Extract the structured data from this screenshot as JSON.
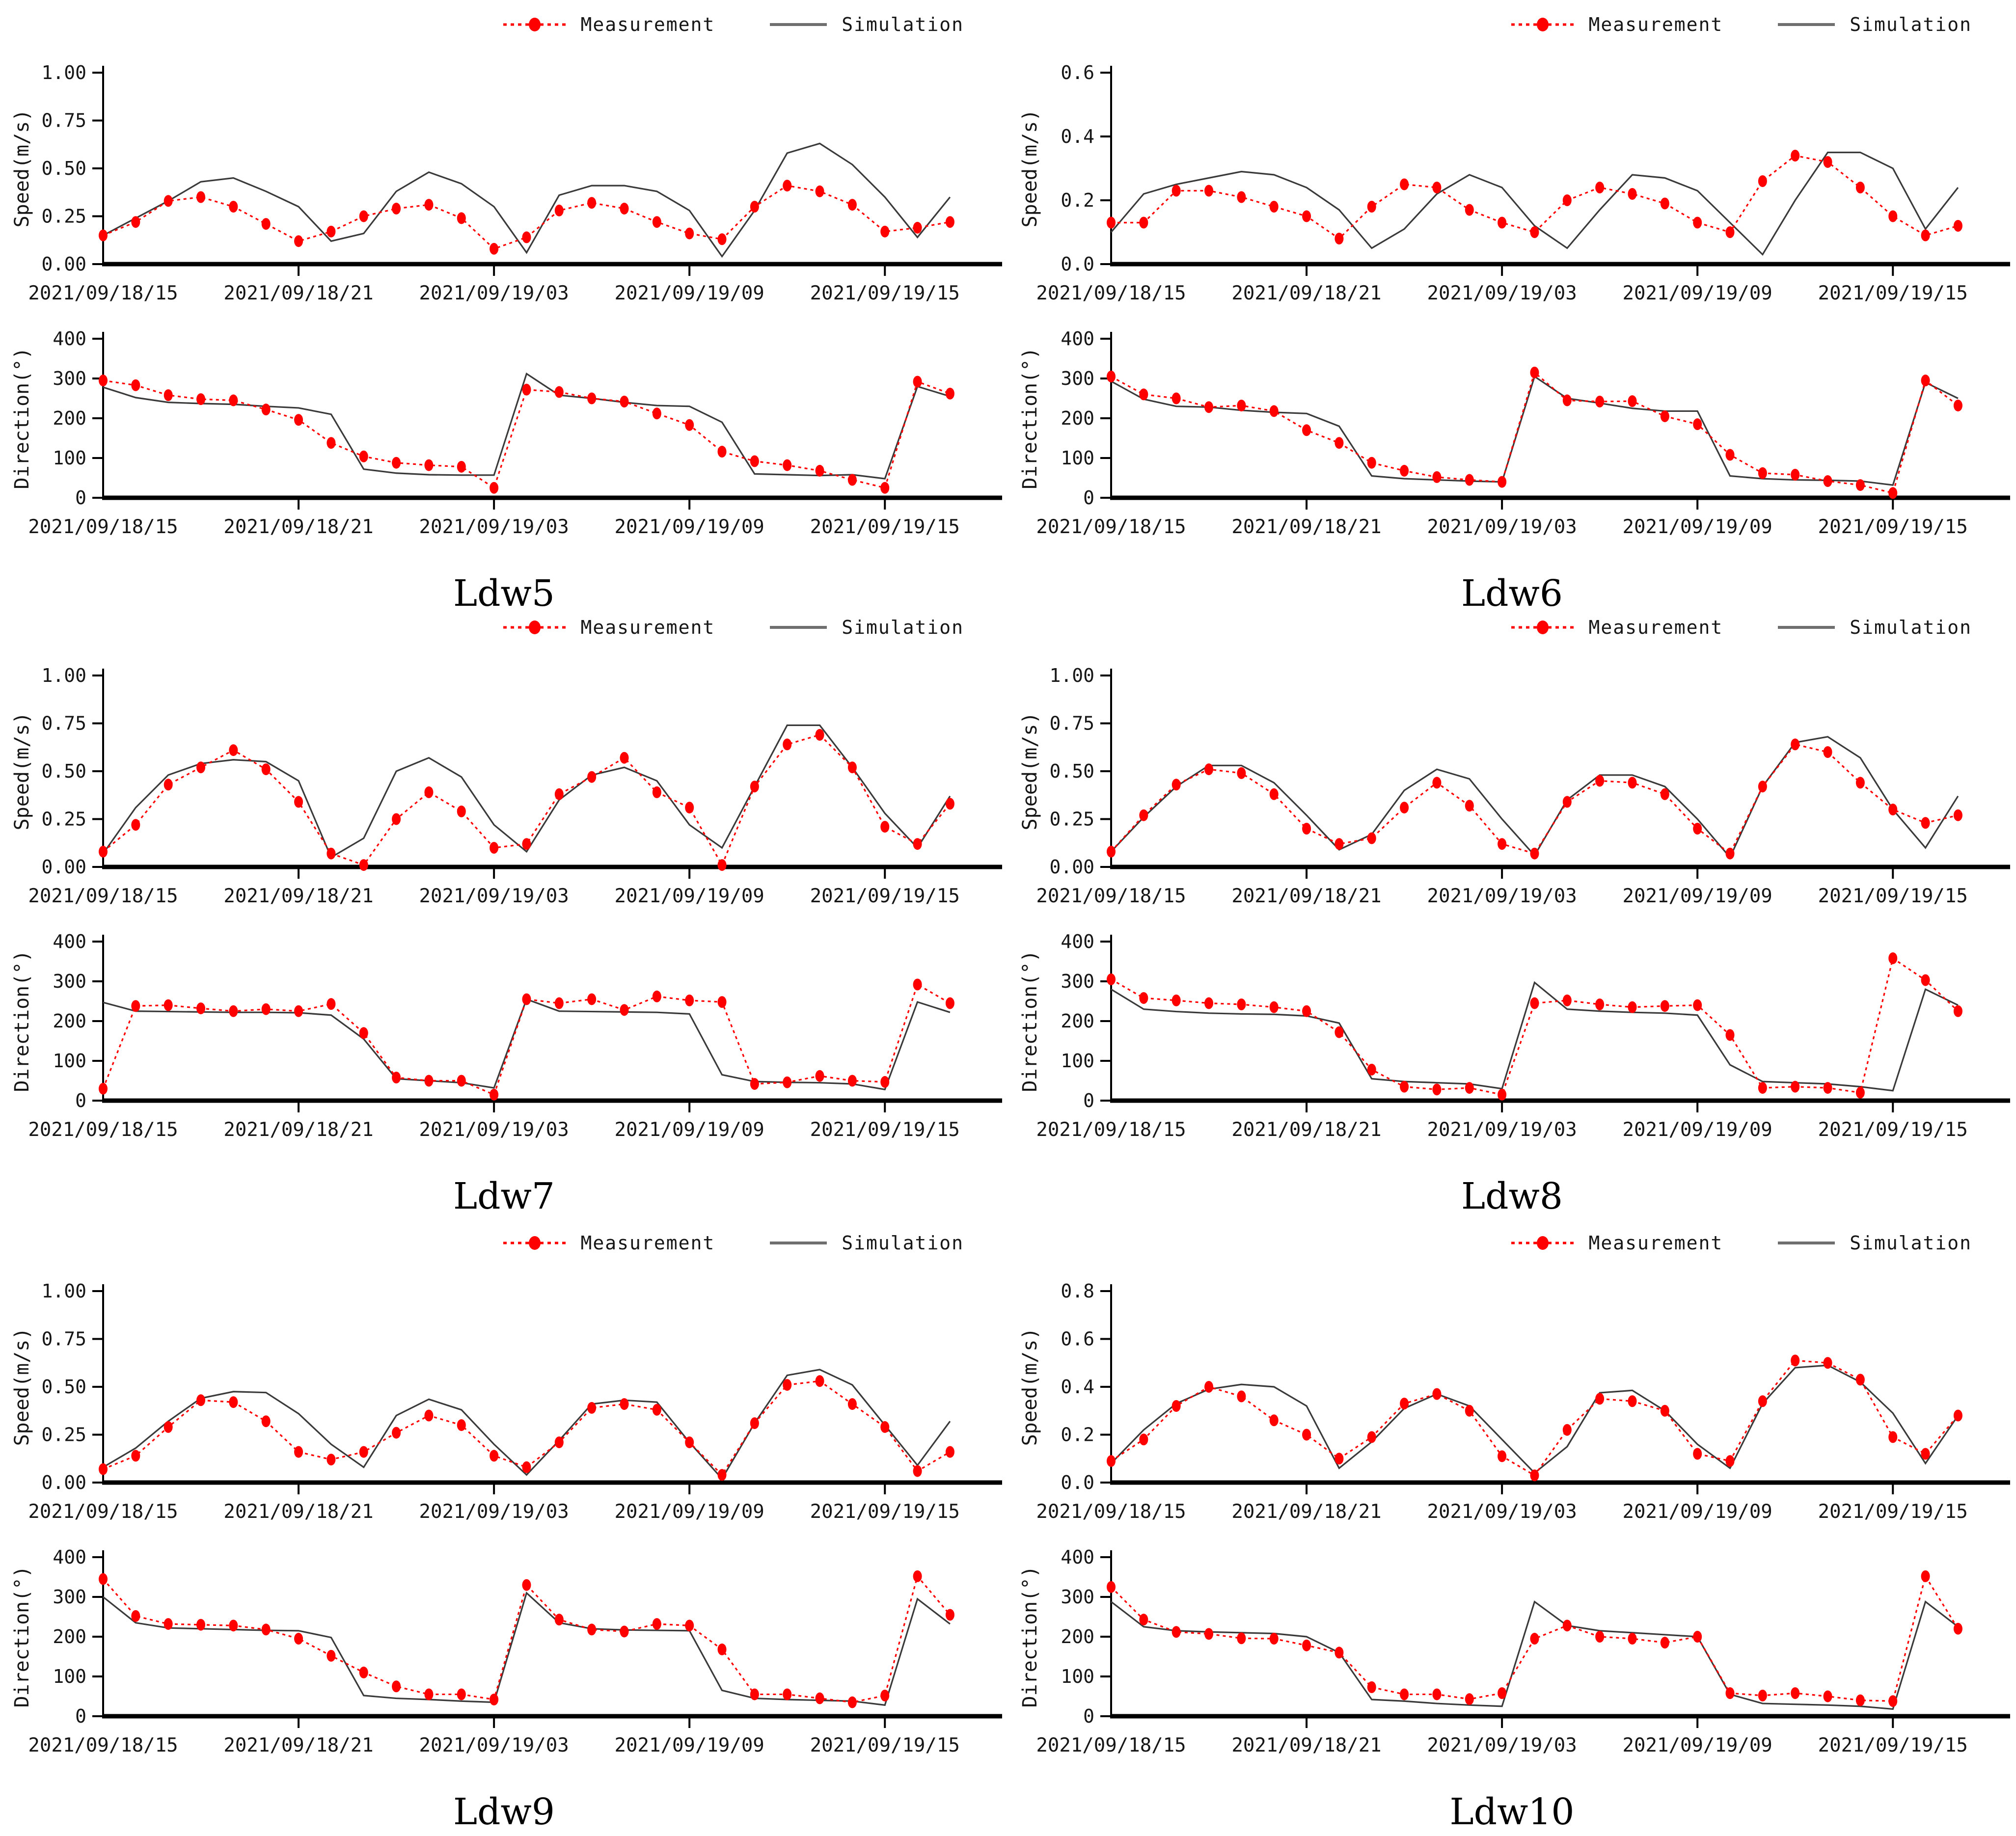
{
  "legend": {
    "measurement_label": "Measurement",
    "simulation_label": "Simulation"
  },
  "colors": {
    "measurement": "#ff0000",
    "simulation_line": "#3a3a3a",
    "simulation_swatch": "#6f6f6f",
    "axis": "#000000",
    "text": "#161616"
  },
  "x_axis": {
    "tick_labels": [
      "2021/09/18/15",
      "2021/09/18/21",
      "2021/09/19/03",
      "2021/09/19/09",
      "2021/09/19/15"
    ],
    "tick_hours": [
      0,
      6,
      12,
      18,
      24
    ],
    "points": 27
  },
  "chart_data": [
    {
      "station": "Ldw5",
      "speed": {
        "type": "line",
        "ylabel": "Speed(m/s)",
        "ymax": 1.0,
        "yticks": [
          "0.00",
          "0.25",
          "0.50",
          "0.75",
          "1.00"
        ],
        "series": [
          {
            "name": "Measurement",
            "values": [
              0.15,
              0.22,
              0.33,
              0.35,
              0.3,
              0.21,
              0.12,
              0.17,
              0.25,
              0.29,
              0.31,
              0.24,
              0.08,
              0.14,
              0.28,
              0.32,
              0.29,
              0.22,
              0.16,
              0.13,
              0.3,
              0.41,
              0.38,
              0.31,
              0.17,
              0.19,
              0.22
            ]
          },
          {
            "name": "Simulation",
            "values": [
              0.15,
              0.24,
              0.33,
              0.43,
              0.45,
              0.38,
              0.3,
              0.12,
              0.16,
              0.38,
              0.48,
              0.42,
              0.3,
              0.06,
              0.36,
              0.41,
              0.41,
              0.38,
              0.28,
              0.04,
              0.28,
              0.58,
              0.63,
              0.52,
              0.35,
              0.14,
              0.35
            ]
          }
        ]
      },
      "direction": {
        "type": "line",
        "ylabel": "Direction(°)",
        "ymax": 400,
        "yticks": [
          "0",
          "100",
          "200",
          "300",
          "400"
        ],
        "series": [
          {
            "name": "Measurement",
            "values": [
              295,
              283,
              258,
              248,
              245,
              222,
              196,
              138,
              104,
              88,
              82,
              78,
              25,
              272,
              266,
              250,
              242,
              212,
              183,
              116,
              92,
              82,
              68,
              45,
              25,
              292,
              262
            ]
          },
          {
            "name": "Simulation",
            "values": [
              278,
              252,
              240,
              237,
              235,
              230,
              226,
              210,
              72,
              62,
              58,
              57,
              57,
              312,
              258,
              250,
              240,
              232,
              230,
              190,
              60,
              58,
              56,
              58,
              48,
              280,
              255
            ]
          }
        ]
      }
    },
    {
      "station": "Ldw6",
      "speed": {
        "type": "line",
        "ylabel": "Speed(m/s)",
        "ymax": 0.6,
        "yticks": [
          "0.0",
          "0.2",
          "0.4",
          "0.6"
        ],
        "series": [
          {
            "name": "Measurement",
            "values": [
              0.13,
              0.13,
              0.23,
              0.23,
              0.21,
              0.18,
              0.15,
              0.08,
              0.18,
              0.25,
              0.24,
              0.17,
              0.13,
              0.1,
              0.2,
              0.24,
              0.22,
              0.19,
              0.13,
              0.1,
              0.26,
              0.34,
              0.32,
              0.24,
              0.15,
              0.09,
              0.12
            ]
          },
          {
            "name": "Simulation",
            "values": [
              0.1,
              0.22,
              0.25,
              0.27,
              0.29,
              0.28,
              0.24,
              0.17,
              0.05,
              0.11,
              0.22,
              0.28,
              0.24,
              0.12,
              0.05,
              0.17,
              0.28,
              0.27,
              0.23,
              0.13,
              0.03,
              0.2,
              0.35,
              0.35,
              0.3,
              0.11,
              0.24
            ]
          }
        ]
      },
      "direction": {
        "type": "line",
        "ylabel": "Direction(°)",
        "ymax": 400,
        "yticks": [
          "0",
          "100",
          "200",
          "300",
          "400"
        ],
        "series": [
          {
            "name": "Measurement",
            "values": [
              305,
              260,
              250,
              228,
              232,
              218,
              170,
              138,
              88,
              68,
              52,
              45,
              40,
              315,
              245,
              242,
              243,
              205,
              185,
              108,
              62,
              58,
              42,
              32,
              12,
              295,
              232
            ]
          },
          {
            "name": "Simulation",
            "values": [
              293,
              248,
              230,
              228,
              220,
              215,
              212,
              180,
              55,
              48,
              45,
              42,
              40,
              305,
              250,
              238,
              225,
              218,
              218,
              55,
              48,
              45,
              44,
              42,
              32,
              290,
              250
            ]
          }
        ]
      }
    },
    {
      "station": "Ldw7",
      "speed": {
        "type": "line",
        "ylabel": "Speed(m/s)",
        "ymax": 1.0,
        "yticks": [
          "0.00",
          "0.25",
          "0.50",
          "0.75",
          "1.00"
        ],
        "series": [
          {
            "name": "Measurement",
            "values": [
              0.08,
              0.22,
              0.43,
              0.52,
              0.61,
              0.51,
              0.34,
              0.07,
              0.01,
              0.25,
              0.39,
              0.29,
              0.1,
              0.12,
              0.38,
              0.47,
              0.57,
              0.39,
              0.31,
              0.01,
              0.42,
              0.64,
              0.69,
              0.52,
              0.21,
              0.12,
              0.33
            ]
          },
          {
            "name": "Simulation",
            "values": [
              0.07,
              0.31,
              0.48,
              0.54,
              0.56,
              0.55,
              0.45,
              0.05,
              0.15,
              0.5,
              0.57,
              0.47,
              0.22,
              0.08,
              0.35,
              0.48,
              0.52,
              0.45,
              0.22,
              0.1,
              0.42,
              0.74,
              0.74,
              0.52,
              0.28,
              0.1,
              0.37
            ]
          }
        ]
      },
      "direction": {
        "type": "line",
        "ylabel": "Direction(°)",
        "ymax": 400,
        "yticks": [
          "0",
          "100",
          "200",
          "300",
          "400"
        ],
        "series": [
          {
            "name": "Measurement",
            "values": [
              30,
              238,
              240,
              232,
              225,
              230,
              225,
              243,
              170,
              58,
              50,
              50,
              15,
              255,
              245,
              255,
              228,
              262,
              252,
              248,
              42,
              46,
              62,
              50,
              47,
              292,
              245
            ]
          },
          {
            "name": "Simulation",
            "values": [
              247,
              225,
              224,
              223,
              222,
              222,
              221,
              215,
              155,
              55,
              50,
              45,
              32,
              255,
              225,
              224,
              223,
              222,
              218,
              65,
              48,
              46,
              45,
              42,
              28,
              248,
              222
            ]
          }
        ]
      }
    },
    {
      "station": "Ldw8",
      "speed": {
        "type": "line",
        "ylabel": "Speed(m/s)",
        "ymax": 1.0,
        "yticks": [
          "0.00",
          "0.25",
          "0.50",
          "0.75",
          "1.00"
        ],
        "series": [
          {
            "name": "Measurement",
            "values": [
              0.08,
              0.27,
              0.43,
              0.51,
              0.49,
              0.38,
              0.2,
              0.12,
              0.15,
              0.31,
              0.44,
              0.32,
              0.12,
              0.07,
              0.34,
              0.45,
              0.44,
              0.38,
              0.2,
              0.07,
              0.42,
              0.64,
              0.6,
              0.44,
              0.3,
              0.23,
              0.27
            ]
          },
          {
            "name": "Simulation",
            "values": [
              0.08,
              0.26,
              0.42,
              0.53,
              0.53,
              0.44,
              0.27,
              0.09,
              0.17,
              0.4,
              0.51,
              0.46,
              0.25,
              0.06,
              0.35,
              0.48,
              0.48,
              0.42,
              0.25,
              0.05,
              0.42,
              0.65,
              0.68,
              0.57,
              0.3,
              0.1,
              0.37
            ]
          }
        ]
      },
      "direction": {
        "type": "line",
        "ylabel": "Direction(°)",
        "ymax": 400,
        "yticks": [
          "0",
          "100",
          "200",
          "300",
          "400"
        ],
        "series": [
          {
            "name": "Measurement",
            "values": [
              305,
              258,
              252,
              245,
              242,
              235,
              225,
              172,
              78,
              35,
              28,
              32,
              15,
              245,
              252,
              242,
              235,
              238,
              240,
              165,
              32,
              35,
              32,
              20,
              358,
              303,
              225
            ]
          },
          {
            "name": "Simulation",
            "values": [
              280,
              230,
              224,
              220,
              218,
              217,
              213,
              195,
              55,
              48,
              45,
              42,
              30,
              297,
              230,
              225,
              222,
              220,
              215,
              90,
              48,
              45,
              42,
              35,
              25,
              280,
              240
            ]
          }
        ]
      }
    },
    {
      "station": "Ldw9",
      "speed": {
        "type": "line",
        "ylabel": "Speed(m/s)",
        "ymax": 1.0,
        "yticks": [
          "0.00",
          "0.25",
          "0.50",
          "0.75",
          "1.00"
        ],
        "series": [
          {
            "name": "Measurement",
            "values": [
              0.07,
              0.14,
              0.29,
              0.43,
              0.42,
              0.32,
              0.16,
              0.12,
              0.16,
              0.26,
              0.35,
              0.3,
              0.14,
              0.08,
              0.21,
              0.39,
              0.41,
              0.38,
              0.21,
              0.04,
              0.31,
              0.51,
              0.53,
              0.41,
              0.29,
              0.06,
              0.16
            ]
          },
          {
            "name": "Simulation",
            "values": [
              0.08,
              0.18,
              0.32,
              0.44,
              0.475,
              0.47,
              0.36,
              0.2,
              0.08,
              0.35,
              0.435,
              0.38,
              0.2,
              0.04,
              0.22,
              0.41,
              0.43,
              0.42,
              0.21,
              0.02,
              0.31,
              0.56,
              0.59,
              0.51,
              0.3,
              0.09,
              0.32
            ]
          }
        ]
      },
      "direction": {
        "type": "line",
        "ylabel": "Direction(°)",
        "ymax": 400,
        "yticks": [
          "0",
          "100",
          "200",
          "300",
          "400"
        ],
        "series": [
          {
            "name": "Measurement",
            "values": [
              345,
              252,
              232,
              230,
              228,
              218,
              195,
              152,
              110,
              75,
              55,
              55,
              42,
              330,
              243,
              218,
              213,
              232,
              228,
              168,
              55,
              55,
              45,
              35,
              52,
              352,
              255
            ]
          },
          {
            "name": "Simulation",
            "values": [
              300,
              235,
              222,
              220,
              218,
              216,
              215,
              198,
              52,
              45,
              42,
              38,
              35,
              310,
              235,
              220,
              217,
              216,
              215,
              65,
              45,
              42,
              40,
              38,
              28,
              295,
              232
            ]
          }
        ]
      }
    },
    {
      "station": "Ldw10",
      "speed": {
        "type": "line",
        "ylabel": "Speed(m/s)",
        "ymax": 0.8,
        "yticks": [
          "0.0",
          "0.2",
          "0.4",
          "0.6",
          "0.8"
        ],
        "series": [
          {
            "name": "Measurement",
            "values": [
              0.09,
              0.18,
              0.32,
              0.4,
              0.36,
              0.26,
              0.2,
              0.1,
              0.19,
              0.33,
              0.37,
              0.3,
              0.11,
              0.03,
              0.22,
              0.35,
              0.34,
              0.3,
              0.12,
              0.09,
              0.34,
              0.51,
              0.5,
              0.43,
              0.19,
              0.12,
              0.28
            ]
          },
          {
            "name": "Simulation",
            "values": [
              0.08,
              0.22,
              0.33,
              0.39,
              0.41,
              0.4,
              0.32,
              0.06,
              0.17,
              0.31,
              0.37,
              0.32,
              0.18,
              0.04,
              0.15,
              0.375,
              0.385,
              0.3,
              0.16,
              0.06,
              0.33,
              0.48,
              0.49,
              0.42,
              0.29,
              0.08,
              0.28
            ]
          }
        ]
      },
      "direction": {
        "type": "line",
        "ylabel": "Direction(°)",
        "ymax": 400,
        "yticks": [
          "0",
          "100",
          "200",
          "300",
          "400"
        ],
        "series": [
          {
            "name": "Measurement",
            "values": [
              325,
              243,
              212,
              207,
              196,
              195,
              178,
              160,
              73,
              55,
              55,
              43,
              58,
              195,
              228,
              200,
              195,
              185,
              200,
              58,
              52,
              58,
              50,
              40,
              38,
              352,
              220
            ]
          },
          {
            "name": "Simulation",
            "values": [
              288,
              225,
              215,
              212,
              210,
              208,
              200,
              160,
              42,
              38,
              32,
              28,
              25,
              288,
              228,
              215,
              210,
              205,
              200,
              55,
              32,
              30,
              28,
              25,
              18,
              288,
              225
            ]
          }
        ]
      }
    }
  ]
}
